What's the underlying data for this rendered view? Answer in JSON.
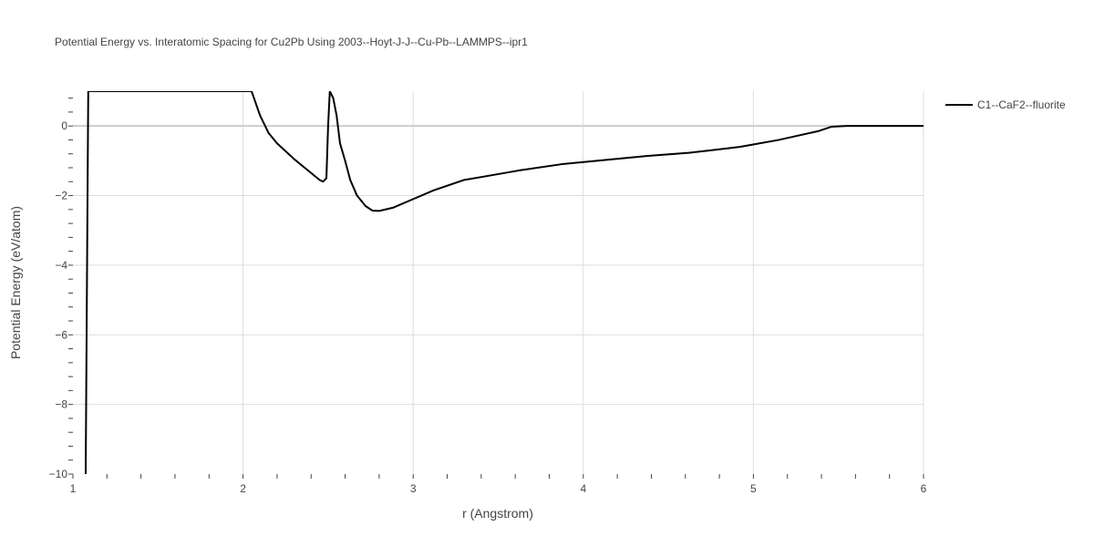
{
  "chart_data": {
    "type": "line",
    "title": "Potential Energy vs. Interatomic Spacing for Cu2Pb Using 2003--Hoyt-J-J--Cu-Pb--LAMMPS--ipr1",
    "xlabel": "r (Angstrom)",
    "ylabel": "Potential Energy (eV/atom)",
    "xlim": [
      1,
      6
    ],
    "ylim": [
      -10,
      1
    ],
    "xticks": [
      1,
      2,
      3,
      4,
      5,
      6
    ],
    "xtick_labels": [
      "1",
      "2",
      "3",
      "4",
      "5",
      "6"
    ],
    "yticks": [
      0,
      -2,
      -4,
      -6,
      -8,
      -10
    ],
    "ytick_labels": [
      "0",
      "−2",
      "−4",
      "−6",
      "−8",
      "−10"
    ],
    "grid": true,
    "legend_position": "top-right",
    "series": [
      {
        "name": "C1--CaF2--fluorite",
        "color": "#000000",
        "x": [
          1.075,
          1.09,
          2.05,
          2.1,
          2.15,
          2.2,
          2.3,
          2.35,
          2.4,
          2.45,
          2.47,
          2.49,
          2.5,
          2.51,
          2.53,
          2.55,
          2.57,
          2.6,
          2.63,
          2.67,
          2.72,
          2.76,
          2.8,
          2.88,
          3.0,
          3.12,
          3.3,
          3.42,
          3.62,
          3.87,
          4.12,
          4.38,
          4.62,
          4.75,
          4.92,
          5.15,
          5.38,
          5.46,
          5.55,
          6.0
        ],
        "y": [
          -10,
          1,
          1.0,
          0.3,
          -0.2,
          -0.5,
          -0.95,
          -1.15,
          -1.35,
          -1.55,
          -1.6,
          -1.5,
          0.0,
          1.0,
          0.8,
          0.3,
          -0.5,
          -1.0,
          -1.55,
          -2.0,
          -2.3,
          -2.43,
          -2.44,
          -2.35,
          -2.1,
          -1.85,
          -1.55,
          -1.45,
          -1.28,
          -1.1,
          -0.98,
          -0.86,
          -0.77,
          -0.7,
          -0.6,
          -0.4,
          -0.15,
          -0.02,
          0.0,
          0.0
        ]
      }
    ]
  }
}
